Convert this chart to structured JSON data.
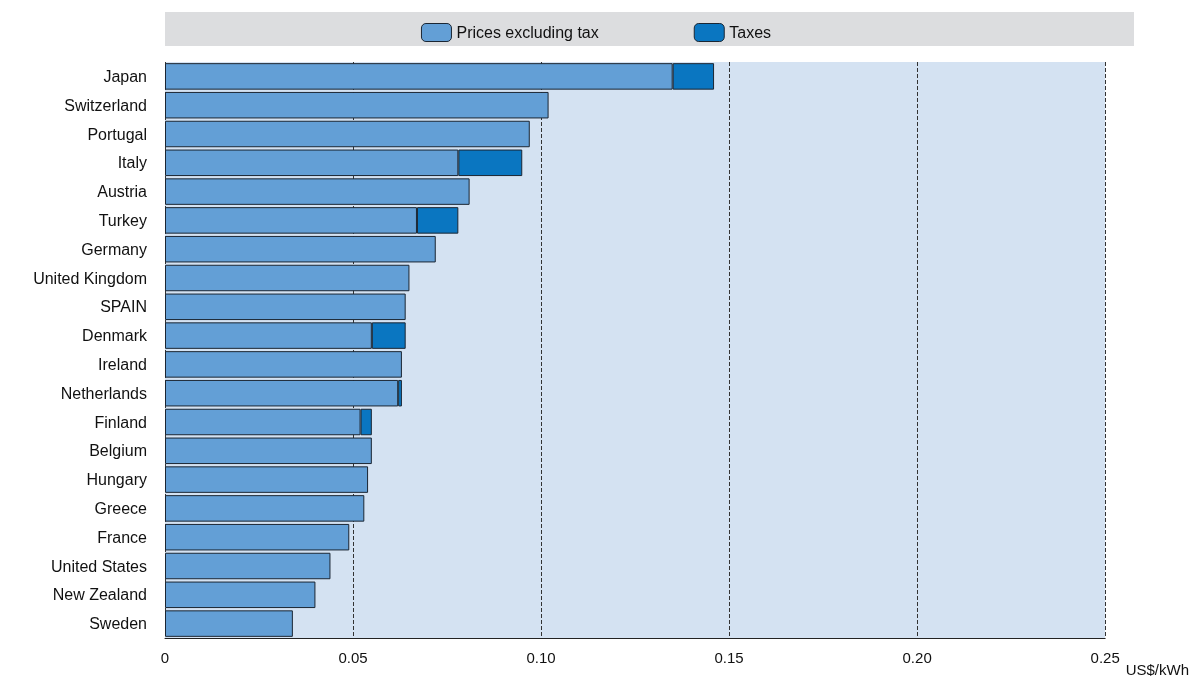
{
  "chart_data": {
    "type": "bar",
    "orientation": "horizontal",
    "stacked": true,
    "categories": [
      "Japan",
      "Switzerland",
      "Portugal",
      "Italy",
      "Austria",
      "Turkey",
      "Germany",
      "United Kingdom",
      "SPAIN",
      "Denmark",
      "Ireland",
      "Netherlands",
      "Finland",
      "Belgium",
      "Hungary",
      "Greece",
      "France",
      "United States",
      "New Zealand",
      "Sweden"
    ],
    "series": [
      {
        "name": "Prices excluding tax",
        "color": "#639fd6",
        "values": [
          0.135,
          0.102,
          0.097,
          0.078,
          0.081,
          0.067,
          0.072,
          0.065,
          0.064,
          0.055,
          0.063,
          0.062,
          0.052,
          0.055,
          0.054,
          0.053,
          0.049,
          0.044,
          0.04,
          0.034
        ]
      },
      {
        "name": "Taxes",
        "color": "#0a76c1",
        "values": [
          0.011,
          null,
          null,
          0.017,
          null,
          0.011,
          null,
          null,
          null,
          0.009,
          null,
          0.001,
          0.003,
          null,
          null,
          null,
          null,
          null,
          null,
          null
        ]
      }
    ],
    "xlim": [
      0,
      0.25
    ],
    "xticks": [
      0,
      {
        "value": 0.05,
        "label": "0.05"
      },
      {
        "value": 0.1,
        "label": "0.10"
      },
      {
        "value": 0.15,
        "label": "0.15"
      },
      {
        "value": 0.2,
        "label": "0.20"
      },
      {
        "value": 0.25,
        "label": "0.25"
      }
    ],
    "xlabel": "US$/kWh",
    "grid": "x",
    "legend": "top"
  }
}
